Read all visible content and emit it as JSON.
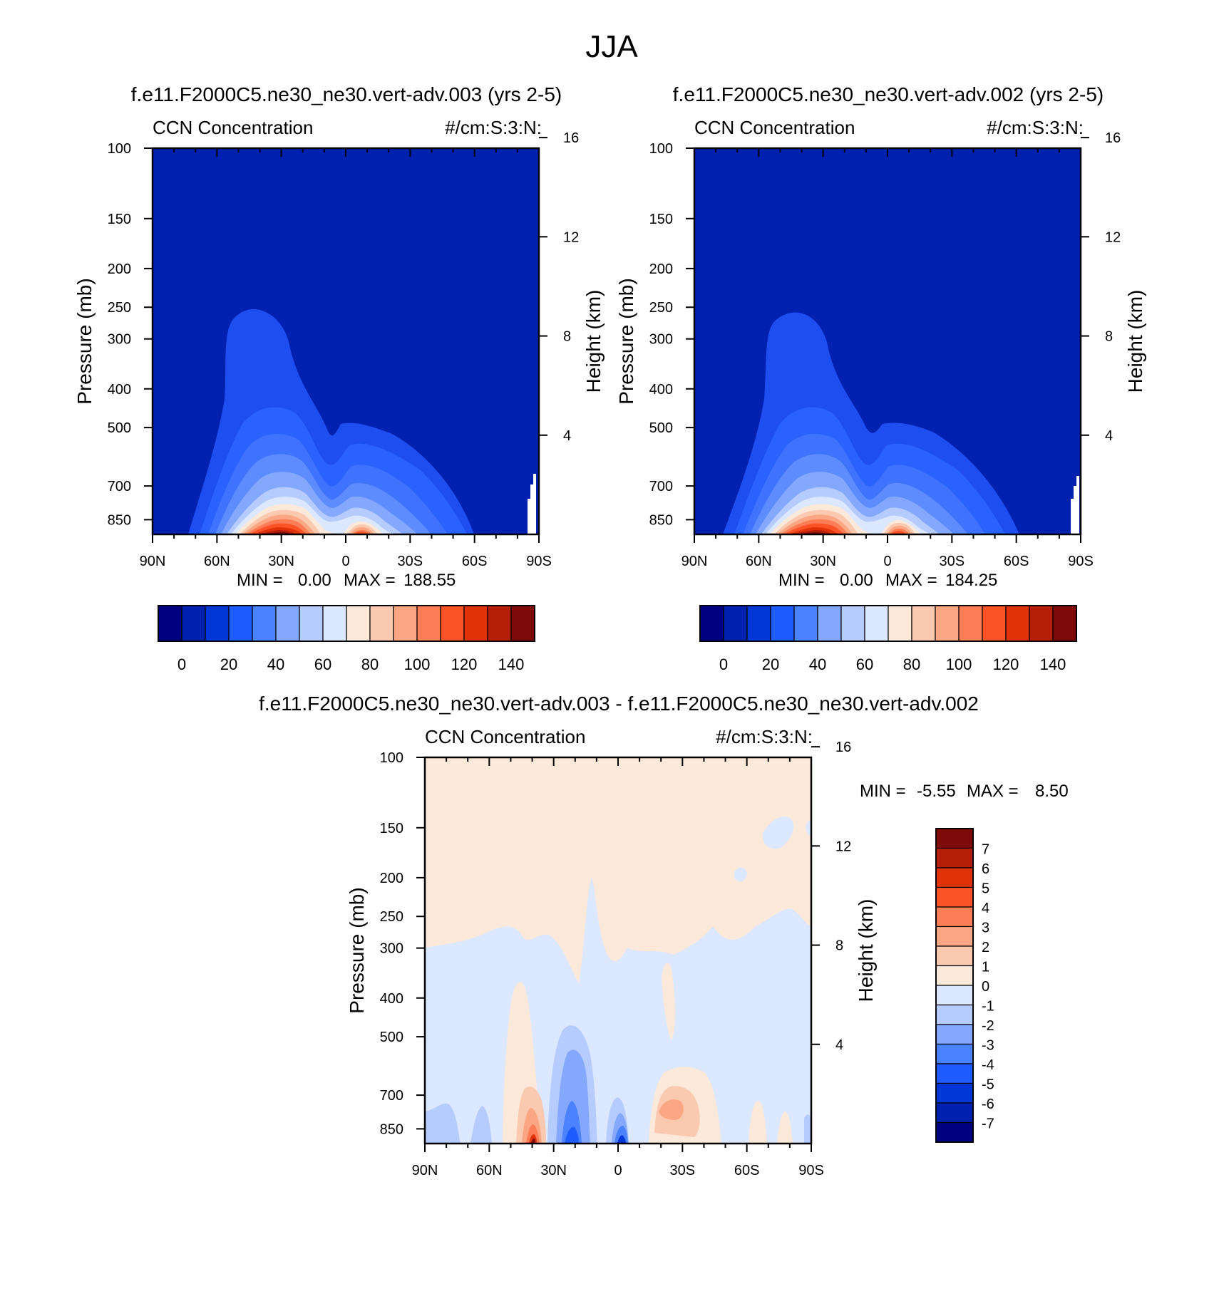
{
  "page_title": "JJA",
  "chart_data": [
    {
      "type": "heatmap",
      "id": "top-left",
      "title": "f.e11.F2000C5.ne30_ne30.vert-adv.003 (yrs 2-5)",
      "left_label": "CCN Concentration",
      "right_label": "#/cm:S:3:N:",
      "ylabel": "Pressure (mb)",
      "ylabel_right": "Height (km)",
      "x_ticks": [
        "90N",
        "60N",
        "30N",
        "0",
        "30S",
        "60S",
        "90S"
      ],
      "y_ticks": [
        "100",
        "150",
        "200",
        "250",
        "300",
        "400",
        "500",
        "700",
        "850"
      ],
      "height_ticks": [
        "16",
        "12",
        "8",
        "4"
      ],
      "min_label": "MIN =",
      "min_value": "0.00",
      "max_label": "MAX =",
      "max_value": "188.55",
      "colorbar_ticks": [
        "0",
        "20",
        "40",
        "60",
        "80",
        "100",
        "120",
        "140"
      ]
    },
    {
      "type": "heatmap",
      "id": "top-right",
      "title": "f.e11.F2000C5.ne30_ne30.vert-adv.002 (yrs 2-5)",
      "left_label": "CCN Concentration",
      "right_label": "#/cm:S:3:N:",
      "ylabel": "Pressure (mb)",
      "ylabel_right": "Height (km)",
      "x_ticks": [
        "90N",
        "60N",
        "30N",
        "0",
        "30S",
        "60S",
        "90S"
      ],
      "y_ticks": [
        "100",
        "150",
        "200",
        "250",
        "300",
        "400",
        "500",
        "700",
        "850"
      ],
      "height_ticks": [
        "16",
        "12",
        "8",
        "4"
      ],
      "min_label": "MIN =",
      "min_value": "0.00",
      "max_label": "MAX =",
      "max_value": "184.25",
      "colorbar_ticks": [
        "0",
        "20",
        "40",
        "60",
        "80",
        "100",
        "120",
        "140"
      ]
    },
    {
      "type": "heatmap",
      "id": "bottom-diff",
      "title": "f.e11.F2000C5.ne30_ne30.vert-adv.003 - f.e11.F2000C5.ne30_ne30.vert-adv.002",
      "left_label": "CCN Concentration",
      "right_label": "#/cm:S:3:N:",
      "ylabel": "Pressure (mb)",
      "ylabel_right": "Height (km)",
      "x_ticks": [
        "90N",
        "60N",
        "30N",
        "0",
        "30S",
        "60S",
        "90S"
      ],
      "y_ticks": [
        "100",
        "150",
        "200",
        "250",
        "300",
        "400",
        "500",
        "700",
        "850"
      ],
      "height_ticks": [
        "16",
        "12",
        "8",
        "4"
      ],
      "min_label": "MIN =",
      "min_value": "-5.55",
      "max_label": "MAX =",
      "max_value": "8.50",
      "colorbar_ticks": [
        "7",
        "6",
        "5",
        "4",
        "3",
        "2",
        "1",
        "0",
        "-1",
        "-2",
        "-3",
        "-4",
        "-5",
        "-6",
        "-7"
      ]
    }
  ],
  "colors": {
    "seq": [
      "#000080",
      "#0020b0",
      "#0038d8",
      "#1f5cff",
      "#4a82ff",
      "#85a8ff",
      "#b6cbff",
      "#dbe8ff",
      "#fde9d9",
      "#fbc8b0",
      "#fca783",
      "#fd7e56",
      "#fb5228",
      "#e03208",
      "#b41e08",
      "#7f0a0a"
    ],
    "div": [
      "#7f0a0a",
      "#b41e08",
      "#e03208",
      "#fb5228",
      "#fd7e56",
      "#fca783",
      "#fbc8b0",
      "#fde9d9",
      "#dbe8ff",
      "#b6cbff",
      "#85a8ff",
      "#4a82ff",
      "#1f5cff",
      "#0038d8",
      "#0020b0",
      "#000080"
    ]
  }
}
